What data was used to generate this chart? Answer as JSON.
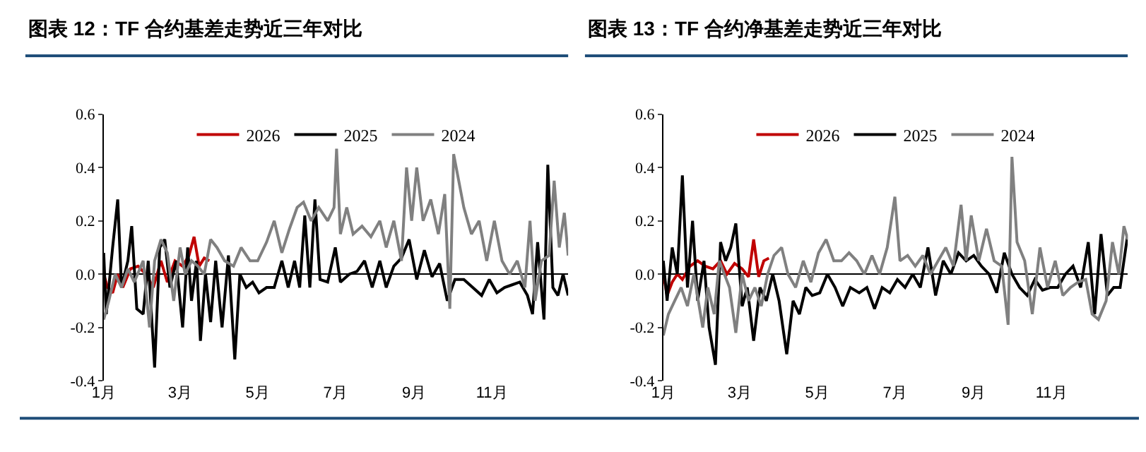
{
  "chart_data": [
    {
      "type": "line",
      "title": "图表 12：TF 合约基差走势近三年对比",
      "legend": "top",
      "xlim": [
        "--01-01",
        "--12-31"
      ],
      "xticks": [
        {
          "value": "--01-01",
          "label": "1月"
        },
        {
          "value": "--03-01",
          "label": "3月"
        },
        {
          "value": "--05-01",
          "label": "5月"
        },
        {
          "value": "--07-01",
          "label": "7月"
        },
        {
          "value": "--09-01",
          "label": "9月"
        },
        {
          "value": "--11-01",
          "label": "11月"
        }
      ],
      "ylim": [
        -0.4,
        0.6
      ],
      "yticks": [
        -0.4,
        -0.2,
        {
          "value": 0,
          "label": "0.0"
        },
        0.2,
        0.4,
        0.6
      ],
      "series": [
        {
          "name": "2026",
          "color": "#c00000",
          "x": [
            "--01-01",
            "--01-04",
            "--01-08",
            "--01-12",
            "--01-16",
            "--01-22",
            "--01-28",
            "--02-03",
            "--02-09",
            "--02-15",
            "--02-20",
            "--02-26",
            "--03-03",
            "--03-08",
            "--03-12",
            "--03-16",
            "--03-20",
            "--03-24"
          ],
          "values": [
            0.0,
            -0.05,
            -0.07,
            0.0,
            -0.05,
            0.02,
            0.03,
            0.0,
            -0.05,
            0.05,
            -0.03,
            0.05,
            0.03,
            0.07,
            0.14,
            0.03,
            0.06,
            0.05
          ]
        },
        {
          "name": "2025",
          "color": "#000000",
          "x": [
            "--01-01",
            "--01-03",
            "--01-08",
            "--01-12",
            "--01-15",
            "--01-20",
            "--01-23",
            "--01-27",
            "--02-01",
            "--02-05",
            "--02-10",
            "--02-14",
            "--02-18",
            "--02-22",
            "--02-27",
            "--03-03",
            "--03-07",
            "--03-10",
            "--03-14",
            "--03-17",
            "--03-21",
            "--03-25",
            "--03-29",
            "--04-03",
            "--04-08",
            "--04-13",
            "--04-17",
            "--04-22",
            "--04-27",
            "--05-02",
            "--05-08",
            "--05-14",
            "--05-20",
            "--05-25",
            "--05-30",
            "--06-03",
            "--06-07",
            "--06-11",
            "--06-15",
            "--06-19",
            "--06-25",
            "--07-01",
            "--07-05",
            "--07-12",
            "--07-18",
            "--07-24",
            "--07-30",
            "--08-05",
            "--08-10",
            "--08-16",
            "--08-22",
            "--08-28",
            "--09-03",
            "--09-09",
            "--09-15",
            "--09-21",
            "--09-27",
            "--10-03",
            "--10-10",
            "--10-17",
            "--10-24",
            "--10-30",
            "--11-05",
            "--11-11",
            "--11-17",
            "--11-23",
            "--11-29",
            "--12-03",
            "--12-07",
            "--12-12",
            "--12-15",
            "--12-19",
            "--12-23",
            "--12-27",
            "--12-31"
          ],
          "values": [
            0.08,
            -0.15,
            0.1,
            0.28,
            -0.05,
            0.05,
            0.18,
            -0.13,
            -0.15,
            0.05,
            -0.35,
            0.1,
            0.13,
            -0.05,
            0.05,
            -0.2,
            0.1,
            -0.1,
            0.05,
            -0.25,
            0.0,
            -0.18,
            0.05,
            -0.2,
            0.07,
            -0.32,
            0.0,
            -0.05,
            -0.03,
            -0.07,
            -0.05,
            -0.05,
            0.05,
            -0.05,
            0.05,
            -0.05,
            0.22,
            -0.05,
            0.28,
            -0.02,
            -0.03,
            0.1,
            -0.03,
            0.0,
            0.01,
            0.05,
            -0.05,
            0.05,
            -0.05,
            0.03,
            0.06,
            0.13,
            -0.02,
            0.09,
            -0.01,
            0.04,
            -0.1,
            -0.02,
            -0.02,
            -0.05,
            -0.08,
            -0.02,
            -0.07,
            -0.05,
            -0.04,
            -0.03,
            -0.08,
            -0.15,
            0.12,
            -0.17,
            0.41,
            -0.05,
            -0.08,
            0.0,
            -0.08
          ]
        },
        {
          "name": "2024",
          "color": "#808080",
          "x": [
            "--01-01",
            "--01-05",
            "--01-10",
            "--01-15",
            "--01-20",
            "--01-25",
            "--02-01",
            "--02-06",
            "--02-10",
            "--02-15",
            "--02-20",
            "--02-25",
            "--03-01",
            "--03-05",
            "--03-10",
            "--03-15",
            "--03-20",
            "--03-25",
            "--03-30",
            "--04-05",
            "--04-12",
            "--04-18",
            "--04-25",
            "--05-01",
            "--05-08",
            "--05-14",
            "--05-20",
            "--05-26",
            "--06-01",
            "--06-06",
            "--06-12",
            "--06-18",
            "--06-25",
            "--06-30",
            "--07-02",
            "--07-05",
            "--07-10",
            "--07-15",
            "--07-22",
            "--07-29",
            "--08-05",
            "--08-10",
            "--08-16",
            "--08-22",
            "--08-26",
            "--08-30",
            "--09-03",
            "--09-08",
            "--09-14",
            "--09-20",
            "--09-25",
            "--09-29",
            "--10-02",
            "--10-10",
            "--10-16",
            "--10-22",
            "--10-28",
            "--11-03",
            "--11-09",
            "--11-15",
            "--11-21",
            "--11-27",
            "--12-01",
            "--12-05",
            "--12-10",
            "--12-16",
            "--12-20",
            "--12-24",
            "--12-28",
            "--12-31"
          ],
          "values": [
            -0.17,
            -0.1,
            0.0,
            -0.05,
            0.02,
            -0.03,
            0.05,
            -0.2,
            0.05,
            0.13,
            0.08,
            -0.1,
            0.1,
            0.0,
            0.05,
            0.03,
            0.0,
            0.13,
            0.1,
            0.05,
            0.03,
            0.1,
            0.05,
            0.05,
            0.12,
            0.2,
            0.08,
            0.17,
            0.25,
            0.27,
            0.2,
            0.25,
            0.2,
            0.25,
            0.47,
            0.15,
            0.25,
            0.15,
            0.18,
            0.14,
            0.2,
            0.1,
            0.2,
            0.05,
            0.4,
            0.2,
            0.4,
            0.2,
            0.28,
            0.15,
            0.3,
            -0.13,
            0.45,
            0.25,
            0.15,
            0.2,
            0.05,
            0.2,
            0.05,
            0.0,
            0.05,
            -0.05,
            0.2,
            -0.1,
            0.05,
            0.07,
            0.35,
            0.1,
            0.23,
            0.07
          ]
        }
      ]
    },
    {
      "type": "line",
      "title": "图表 13：TF 合约净基差走势近三年对比",
      "legend": "top",
      "xlim": [
        "--01-01",
        "--12-31"
      ],
      "xticks": [
        {
          "value": "--01-01",
          "label": "1月"
        },
        {
          "value": "--03-01",
          "label": "3月"
        },
        {
          "value": "--05-01",
          "label": "5月"
        },
        {
          "value": "--07-01",
          "label": "7月"
        },
        {
          "value": "--09-01",
          "label": "9月"
        },
        {
          "value": "--11-01",
          "label": "11月"
        }
      ],
      "ylim": [
        -0.4,
        0.6
      ],
      "yticks": [
        -0.4,
        -0.2,
        {
          "value": 0,
          "label": "0.0"
        },
        0.2,
        0.4,
        0.6
      ],
      "series": [
        {
          "name": "2026",
          "color": "#c00000",
          "x": [
            "--01-01",
            "--01-04",
            "--01-08",
            "--01-12",
            "--01-16",
            "--01-22",
            "--01-28",
            "--02-03",
            "--02-09",
            "--02-15",
            "--02-20",
            "--02-26",
            "--03-03",
            "--03-08",
            "--03-12",
            "--03-16",
            "--03-20",
            "--03-24"
          ],
          "values": [
            0.0,
            -0.08,
            -0.03,
            0.0,
            -0.02,
            0.03,
            0.05,
            0.03,
            0.02,
            0.05,
            0.0,
            0.04,
            0.02,
            -0.01,
            0.13,
            -0.01,
            0.05,
            0.06
          ]
        },
        {
          "name": "2025",
          "color": "#000000",
          "x": [
            "--01-01",
            "--01-04",
            "--01-08",
            "--01-12",
            "--01-16",
            "--01-20",
            "--01-24",
            "--01-28",
            "--02-02",
            "--02-06",
            "--02-11",
            "--02-15",
            "--02-19",
            "--02-23",
            "--02-27",
            "--03-03",
            "--03-07",
            "--03-12",
            "--03-17",
            "--03-22",
            "--03-27",
            "--04-01",
            "--04-07",
            "--04-12",
            "--04-17",
            "--04-22",
            "--04-27",
            "--05-03",
            "--05-09",
            "--05-15",
            "--05-21",
            "--05-27",
            "--06-03",
            "--06-09",
            "--06-15",
            "--06-21",
            "--06-27",
            "--07-03",
            "--07-09",
            "--07-15",
            "--07-21",
            "--07-27",
            "--08-02",
            "--08-08",
            "--08-14",
            "--08-20",
            "--08-26",
            "--09-01",
            "--09-07",
            "--09-13",
            "--09-19",
            "--09-25",
            "--10-01",
            "--10-07",
            "--10-13",
            "--10-19",
            "--10-25",
            "--10-31",
            "--11-06",
            "--11-12",
            "--11-18",
            "--11-24",
            "--11-30",
            "--12-05",
            "--12-10",
            "--12-15",
            "--12-20",
            "--12-25",
            "--12-31"
          ],
          "values": [
            0.05,
            -0.1,
            0.1,
            0.0,
            0.37,
            -0.05,
            0.2,
            -0.1,
            0.05,
            -0.2,
            -0.34,
            0.12,
            0.05,
            0.1,
            0.19,
            -0.12,
            -0.05,
            -0.25,
            -0.05,
            -0.1,
            0.0,
            -0.1,
            -0.3,
            -0.1,
            -0.15,
            -0.05,
            -0.08,
            -0.07,
            0.0,
            -0.05,
            -0.12,
            -0.05,
            -0.07,
            -0.05,
            -0.13,
            -0.05,
            -0.07,
            -0.02,
            -0.05,
            0.0,
            -0.05,
            0.1,
            -0.08,
            0.05,
            0.0,
            0.08,
            0.05,
            0.07,
            0.03,
            0.0,
            -0.07,
            0.08,
            0.0,
            -0.05,
            -0.08,
            -0.02,
            -0.06,
            -0.05,
            -0.05,
            0.0,
            0.03,
            -0.05,
            0.12,
            -0.15,
            0.15,
            -0.08,
            -0.05,
            -0.05,
            0.15
          ]
        },
        {
          "name": "2024",
          "color": "#808080",
          "x": [
            "--01-01",
            "--01-05",
            "--01-10",
            "--01-15",
            "--01-20",
            "--01-25",
            "--02-01",
            "--02-05",
            "--02-10",
            "--02-14",
            "--02-18",
            "--02-22",
            "--02-27",
            "--03-03",
            "--03-08",
            "--03-13",
            "--03-18",
            "--03-23",
            "--03-28",
            "--04-03",
            "--04-08",
            "--04-14",
            "--04-20",
            "--04-26",
            "--05-02",
            "--05-08",
            "--05-14",
            "--05-20",
            "--05-26",
            "--06-01",
            "--06-07",
            "--06-13",
            "--06-19",
            "--06-25",
            "--07-01",
            "--07-05",
            "--07-11",
            "--07-17",
            "--07-23",
            "--07-29",
            "--08-04",
            "--08-10",
            "--08-16",
            "--08-22",
            "--08-26",
            "--08-30",
            "--09-05",
            "--09-11",
            "--09-17",
            "--09-23",
            "--09-28",
            "--10-01",
            "--10-05",
            "--10-11",
            "--10-17",
            "--10-23",
            "--10-29",
            "--11-04",
            "--11-10",
            "--11-16",
            "--11-22",
            "--11-28",
            "--12-03",
            "--12-08",
            "--12-14",
            "--12-19",
            "--12-24",
            "--12-28",
            "--12-31"
          ],
          "values": [
            -0.23,
            -0.15,
            -0.1,
            -0.05,
            -0.12,
            0.0,
            -0.2,
            -0.05,
            -0.15,
            0.05,
            0.0,
            -0.05,
            -0.22,
            0.0,
            -0.1,
            -0.05,
            -0.12,
            0.0,
            0.07,
            0.1,
            0.0,
            -0.05,
            0.05,
            -0.03,
            0.08,
            0.13,
            0.05,
            0.05,
            0.08,
            0.05,
            0.0,
            0.07,
            0.0,
            0.1,
            0.29,
            0.05,
            0.07,
            0.03,
            0.07,
            0.0,
            0.05,
            0.1,
            0.03,
            0.26,
            0.05,
            0.22,
            0.05,
            0.17,
            0.05,
            0.03,
            -0.19,
            0.44,
            0.12,
            0.05,
            -0.15,
            0.1,
            -0.05,
            0.05,
            -0.08,
            -0.05,
            -0.03,
            -0.02,
            -0.15,
            -0.17,
            -0.1,
            0.12,
            0.0,
            0.18,
            0.13
          ]
        }
      ]
    }
  ]
}
